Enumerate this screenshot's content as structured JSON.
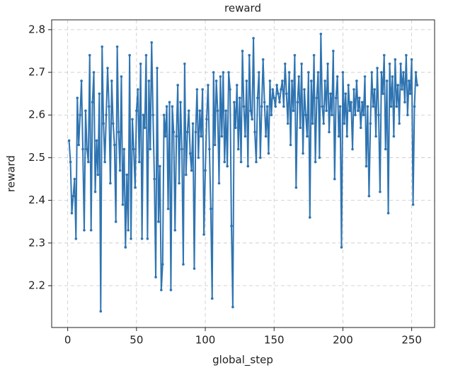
{
  "chart_data": {
    "type": "line",
    "title": "reward",
    "x_label": "global_step",
    "y_label": "reward",
    "color": "#2f74b1",
    "grid": true,
    "xlim": [
      -11.65,
      266.65
    ],
    "ylim": [
      2.102,
      2.823
    ],
    "xticks": [
      0,
      50,
      100,
      150,
      200,
      250
    ],
    "yticks": [
      2.2,
      2.3,
      2.4,
      2.5,
      2.6,
      2.7,
      2.8
    ],
    "x": [
      1,
      2,
      3,
      4,
      5,
      6,
      7,
      8,
      9,
      10,
      11,
      12,
      13,
      14,
      15,
      16,
      17,
      18,
      19,
      20,
      21,
      22,
      23,
      24,
      25,
      26,
      27,
      28,
      29,
      30,
      31,
      32,
      33,
      34,
      35,
      36,
      37,
      38,
      39,
      40,
      41,
      42,
      43,
      44,
      45,
      46,
      47,
      48,
      49,
      50,
      51,
      52,
      53,
      54,
      55,
      56,
      57,
      58,
      59,
      60,
      61,
      62,
      63,
      64,
      65,
      66,
      67,
      68,
      69,
      70,
      71,
      72,
      73,
      74,
      75,
      76,
      77,
      78,
      79,
      80,
      81,
      82,
      83,
      84,
      85,
      86,
      87,
      88,
      89,
      90,
      91,
      92,
      93,
      94,
      95,
      96,
      97,
      98,
      99,
      100,
      101,
      102,
      103,
      104,
      105,
      106,
      107,
      108,
      109,
      110,
      111,
      112,
      113,
      114,
      115,
      116,
      117,
      118,
      119,
      120,
      121,
      122,
      123,
      124,
      125,
      126,
      127,
      128,
      129,
      130,
      131,
      132,
      133,
      134,
      135,
      136,
      137,
      138,
      139,
      140,
      141,
      142,
      143,
      144,
      145,
      146,
      147,
      148,
      149,
      150,
      151,
      152,
      153,
      154,
      155,
      156,
      157,
      158,
      159,
      160,
      161,
      162,
      163,
      164,
      165,
      166,
      167,
      168,
      169,
      170,
      171,
      172,
      173,
      174,
      175,
      176,
      177,
      178,
      179,
      180,
      181,
      182,
      183,
      184,
      185,
      186,
      187,
      188,
      189,
      190,
      191,
      192,
      193,
      194,
      195,
      196,
      197,
      198,
      199,
      200,
      201,
      202,
      203,
      204,
      205,
      206,
      207,
      208,
      209,
      210,
      211,
      212,
      213,
      214,
      215,
      216,
      217,
      218,
      219,
      220,
      221,
      222,
      223,
      224,
      225,
      226,
      227,
      228,
      229,
      230,
      231,
      232,
      233,
      234,
      235,
      236,
      237,
      238,
      239,
      240,
      241,
      242,
      243,
      244,
      245,
      246,
      247,
      248,
      249,
      250,
      251,
      252,
      253,
      254
    ],
    "values": [
      2.54,
      2.49,
      2.37,
      2.41,
      2.45,
      2.31,
      2.64,
      2.53,
      2.6,
      2.68,
      2.52,
      2.33,
      2.61,
      2.52,
      2.49,
      2.74,
      2.33,
      2.63,
      2.7,
      2.42,
      2.54,
      2.46,
      2.65,
      2.14,
      2.76,
      2.58,
      2.49,
      2.6,
      2.71,
      2.62,
      2.44,
      2.68,
      2.58,
      2.53,
      2.35,
      2.76,
      2.56,
      2.47,
      2.69,
      2.39,
      2.52,
      2.29,
      2.46,
      2.33,
      2.74,
      2.31,
      2.59,
      2.52,
      2.43,
      2.61,
      2.66,
      2.49,
      2.72,
      2.31,
      2.6,
      2.57,
      2.74,
      2.31,
      2.68,
      2.52,
      2.77,
      2.6,
      2.45,
      2.22,
      2.71,
      2.35,
      2.48,
      2.19,
      2.25,
      2.6,
      2.55,
      2.62,
      2.38,
      2.63,
      2.19,
      2.62,
      2.56,
      2.33,
      2.55,
      2.67,
      2.44,
      2.63,
      2.52,
      2.25,
      2.72,
      2.46,
      2.56,
      2.61,
      2.51,
      2.47,
      2.58,
      2.24,
      2.56,
      2.66,
      2.5,
      2.61,
      2.55,
      2.66,
      2.32,
      2.47,
      2.59,
      2.67,
      2.52,
      2.38,
      2.17,
      2.7,
      2.53,
      2.68,
      2.61,
      2.44,
      2.69,
      2.55,
      2.7,
      2.49,
      2.61,
      2.48,
      2.7,
      2.66,
      2.34,
      2.15,
      2.63,
      2.57,
      2.67,
      2.52,
      2.64,
      2.49,
      2.75,
      2.62,
      2.55,
      2.68,
      2.48,
      2.74,
      2.61,
      2.59,
      2.78,
      2.56,
      2.49,
      2.64,
      2.7,
      2.5,
      2.62,
      2.73,
      2.63,
      2.55,
      2.62,
      2.51,
      2.68,
      2.6,
      2.66,
      2.64,
      2.62,
      2.67,
      2.65,
      2.63,
      2.66,
      2.68,
      2.62,
      2.72,
      2.65,
      2.58,
      2.7,
      2.53,
      2.68,
      2.61,
      2.74,
      2.43,
      2.63,
      2.69,
      2.57,
      2.72,
      2.51,
      2.66,
      2.6,
      2.55,
      2.7,
      2.36,
      2.68,
      2.58,
      2.74,
      2.49,
      2.64,
      2.7,
      2.5,
      2.79,
      2.62,
      2.58,
      2.68,
      2.61,
      2.72,
      2.56,
      2.65,
      2.6,
      2.75,
      2.45,
      2.64,
      2.69,
      2.55,
      2.62,
      2.29,
      2.7,
      2.58,
      2.65,
      2.55,
      2.67,
      2.61,
      2.63,
      2.52,
      2.66,
      2.6,
      2.68,
      2.61,
      2.64,
      2.57,
      2.63,
      2.6,
      2.69,
      2.48,
      2.62,
      2.41,
      2.58,
      2.7,
      2.62,
      2.66,
      2.55,
      2.71,
      2.6,
      2.42,
      2.7,
      2.65,
      2.74,
      2.52,
      2.68,
      2.37,
      2.72,
      2.62,
      2.69,
      2.55,
      2.73,
      2.62,
      2.67,
      2.58,
      2.72,
      2.66,
      2.7,
      2.63,
      2.74,
      2.6,
      2.68,
      2.65,
      2.73,
      2.39,
      2.62,
      2.7,
      2.67
    ]
  }
}
